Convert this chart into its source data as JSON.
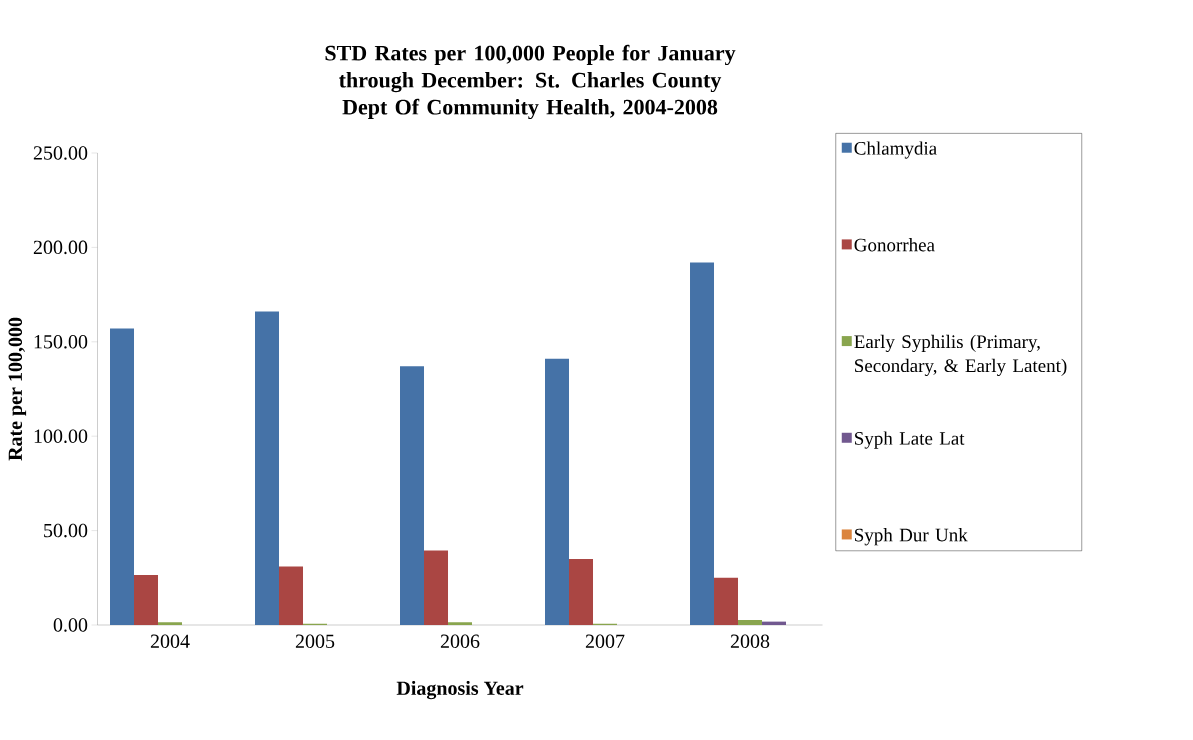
{
  "chart_data": {
    "type": "bar",
    "title": "STD Rates per 100,000 People for January through December: St. Charles County Dept Of Community Health, 2004-2008",
    "xlabel": "Diagnosis Year",
    "ylabel": "Rate per 100,000",
    "categories": [
      "2004",
      "2005",
      "2006",
      "2007",
      "2008"
    ],
    "series": [
      {
        "name": "Chlamydia",
        "color": "#4572a7",
        "values": [
          157,
          166,
          137,
          141,
          192
        ]
      },
      {
        "name": "Gonorrhea",
        "color": "#aa4643",
        "values": [
          26.5,
          31,
          39.5,
          35,
          25
        ]
      },
      {
        "name": "Early Syphilis (Primary, Secondary, & Early Latent)",
        "color": "#89a54e",
        "values": [
          1.4,
          0.7,
          1.4,
          0.7,
          2.6
        ]
      },
      {
        "name": "Syph Late Lat",
        "color": "#71588f",
        "values": [
          0,
          0,
          0,
          0,
          1.9
        ]
      },
      {
        "name": "Syph Dur Unk",
        "color": "#db843d",
        "values": [
          0,
          0,
          0,
          0,
          0
        ]
      }
    ],
    "ylim": [
      0,
      250
    ],
    "yticks": [
      {
        "value": 0,
        "label": "0.00"
      },
      {
        "value": 50,
        "label": "50.00"
      },
      {
        "value": 100,
        "label": "100.00"
      },
      {
        "value": 150,
        "label": "150.00"
      },
      {
        "value": 200,
        "label": "200.00"
      },
      {
        "value": 250,
        "label": "250.00"
      }
    ],
    "legend": "right"
  }
}
